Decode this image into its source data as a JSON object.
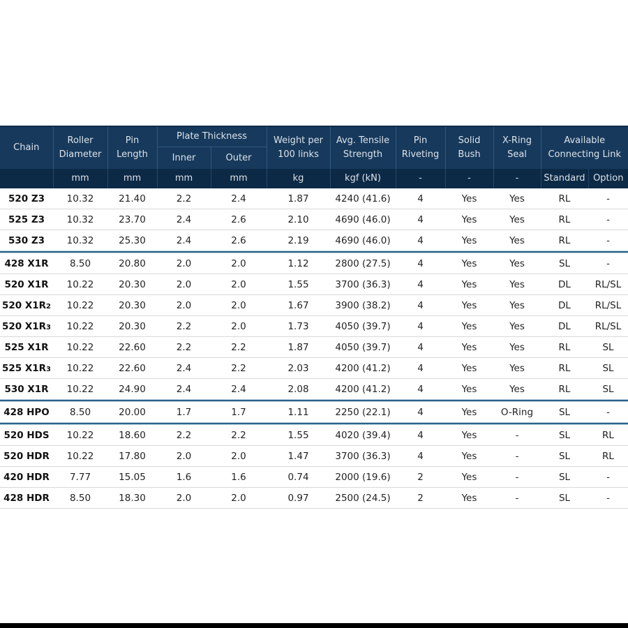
{
  "colors": {
    "header_bg": "#16395c",
    "units_bg": "#0c2946",
    "header_divider": "#2e5a80",
    "units_divider": "#23496c",
    "header_text": "#dde3e9",
    "body_text": "#222222",
    "chain_text": "#111111",
    "row_divider": "#d9d9d9",
    "group_line_dark": "#2d6187",
    "group_line_light": "#bad3e3",
    "bottom_bar": "#000000"
  },
  "table": {
    "header": {
      "chain": "Chain",
      "roller_diameter": "Roller\nDiameter",
      "pin_length": "Pin\nLength",
      "plate_thickness": "Plate Thickness",
      "inner": "Inner",
      "outer": "Outer",
      "weight": "Weight per\n100 links",
      "tensile": "Avg. Tensile\nStrength",
      "pin_riveting": "Pin\nRiveting",
      "solid_bush": "Solid\nBush",
      "xring_seal": "X-Ring\nSeal",
      "available_link": "Available\nConnecting Link"
    },
    "units": {
      "chain": "",
      "roller_diameter": "mm",
      "pin_length": "mm",
      "inner": "mm",
      "outer": "mm",
      "weight": "kg",
      "tensile": "kgf (kN)",
      "pin_riveting": "-",
      "solid_bush": "-",
      "xring_seal": "-",
      "standard": "Standard",
      "option": "Option"
    },
    "value_keys": [
      "roller-diameter",
      "pin-length",
      "plate-inner",
      "plate-outer",
      "weight",
      "tensile-strength",
      "pin-riveting",
      "solid-bush",
      "xring-seal",
      "standard-link",
      "option-link"
    ],
    "rows": [
      {
        "chain": "520 Z3",
        "chain_sub": "",
        "values": [
          "10.32",
          "21.40",
          "2.2",
          "2.4",
          "1.87",
          "4240 (41.6)",
          "4",
          "Yes",
          "Yes",
          "RL",
          "-"
        ],
        "group_end": false
      },
      {
        "chain": "525 Z3",
        "chain_sub": "",
        "values": [
          "10.32",
          "23.70",
          "2.4",
          "2.6",
          "2.10",
          "4690 (46.0)",
          "4",
          "Yes",
          "Yes",
          "RL",
          "-"
        ],
        "group_end": false
      },
      {
        "chain": "530 Z3",
        "chain_sub": "",
        "values": [
          "10.32",
          "25.30",
          "2.4",
          "2.6",
          "2.19",
          "4690 (46.0)",
          "4",
          "Yes",
          "Yes",
          "RL",
          "-"
        ],
        "group_end": true
      },
      {
        "chain": "428 X1R",
        "chain_sub": "",
        "values": [
          "8.50",
          "20.80",
          "2.0",
          "2.0",
          "1.12",
          "2800 (27.5)",
          "4",
          "Yes",
          "Yes",
          "SL",
          "-"
        ],
        "group_end": false
      },
      {
        "chain": "520 X1R",
        "chain_sub": "",
        "values": [
          "10.22",
          "20.30",
          "2.0",
          "2.0",
          "1.55",
          "3700 (36.3)",
          "4",
          "Yes",
          "Yes",
          "DL",
          "RL/SL"
        ],
        "group_end": false
      },
      {
        "chain": "520 X1R",
        "chain_sub": "2",
        "values": [
          "10.22",
          "20.30",
          "2.0",
          "2.0",
          "1.67",
          "3900 (38.2)",
          "4",
          "Yes",
          "Yes",
          "DL",
          "RL/SL"
        ],
        "group_end": false
      },
      {
        "chain": "520 X1R",
        "chain_sub": "3",
        "values": [
          "10.22",
          "20.30",
          "2.2",
          "2.0",
          "1.73",
          "4050 (39.7)",
          "4",
          "Yes",
          "Yes",
          "DL",
          "RL/SL"
        ],
        "group_end": false
      },
      {
        "chain": "525 X1R",
        "chain_sub": "",
        "values": [
          "10.22",
          "22.60",
          "2.2",
          "2.2",
          "1.87",
          "4050 (39.7)",
          "4",
          "Yes",
          "Yes",
          "RL",
          "SL"
        ],
        "group_end": false
      },
      {
        "chain": "525 X1R",
        "chain_sub": "3",
        "values": [
          "10.22",
          "22.60",
          "2.4",
          "2.2",
          "2.03",
          "4200 (41.2)",
          "4",
          "Yes",
          "Yes",
          "RL",
          "SL"
        ],
        "group_end": false
      },
      {
        "chain": "530 X1R",
        "chain_sub": "",
        "values": [
          "10.22",
          "24.90",
          "2.4",
          "2.4",
          "2.08",
          "4200 (41.2)",
          "4",
          "Yes",
          "Yes",
          "RL",
          "SL"
        ],
        "group_end": true
      },
      {
        "chain": "428 HPO",
        "chain_sub": "",
        "values": [
          "8.50",
          "20.00",
          "1.7",
          "1.7",
          "1.11",
          "2250 (22.1)",
          "4",
          "Yes",
          "O-Ring",
          "SL",
          "-"
        ],
        "group_end": true
      },
      {
        "chain": "520 HDS",
        "chain_sub": "",
        "values": [
          "10.22",
          "18.60",
          "2.2",
          "2.2",
          "1.55",
          "4020 (39.4)",
          "4",
          "Yes",
          "-",
          "SL",
          "RL"
        ],
        "group_end": false
      },
      {
        "chain": "520 HDR",
        "chain_sub": "",
        "values": [
          "10.22",
          "17.80",
          "2.0",
          "2.0",
          "1.47",
          "3700 (36.3)",
          "4",
          "Yes",
          "-",
          "SL",
          "RL"
        ],
        "group_end": false
      },
      {
        "chain": "420 HDR",
        "chain_sub": "",
        "values": [
          "7.77",
          "15.05",
          "1.6",
          "1.6",
          "0.74",
          "2000 (19.6)",
          "2",
          "Yes",
          "-",
          "SL",
          "-"
        ],
        "group_end": false
      },
      {
        "chain": "428 HDR",
        "chain_sub": "",
        "values": [
          "8.50",
          "18.30",
          "2.0",
          "2.0",
          "0.97",
          "2500 (24.5)",
          "2",
          "Yes",
          "-",
          "SL",
          "-"
        ],
        "group_end": false
      }
    ]
  }
}
